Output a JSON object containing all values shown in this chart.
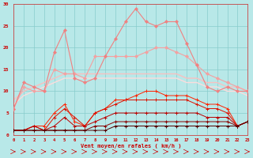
{
  "x": [
    0,
    1,
    2,
    3,
    4,
    5,
    6,
    7,
    8,
    9,
    10,
    11,
    12,
    13,
    14,
    15,
    16,
    17,
    18,
    19,
    20,
    21,
    22,
    23
  ],
  "line_jagged1": [
    6,
    12,
    11,
    10,
    19,
    24,
    13,
    12,
    13,
    18,
    22,
    26,
    29,
    26,
    25,
    26,
    26,
    21,
    16,
    11,
    10,
    11,
    10,
    10
  ],
  "line_jagged2": [
    6,
    11,
    10,
    10,
    15,
    14,
    14,
    13,
    18,
    18,
    18,
    18,
    18,
    19,
    20,
    20,
    19,
    18,
    16,
    14,
    13,
    12,
    11,
    10
  ],
  "line_smooth1": [
    8,
    10,
    11,
    12,
    13,
    14,
    14,
    14,
    14,
    14,
    14,
    14,
    14,
    14,
    14,
    14,
    14,
    13,
    13,
    12,
    12,
    11,
    11,
    10
  ],
  "line_smooth2": [
    7,
    9,
    10,
    11,
    12,
    13,
    13,
    13,
    13,
    13,
    13,
    13,
    13,
    13,
    13,
    13,
    13,
    12,
    12,
    11,
    11,
    10,
    10,
    9
  ],
  "line_red1": [
    1,
    1,
    2,
    2,
    5,
    7,
    3,
    2,
    5,
    6,
    8,
    8,
    9,
    10,
    10,
    9,
    9,
    9,
    8,
    7,
    7,
    6,
    2,
    3
  ],
  "line_red2": [
    1,
    1,
    2,
    1,
    4,
    6,
    4,
    2,
    5,
    6,
    7,
    8,
    8,
    8,
    8,
    8,
    8,
    8,
    7,
    6,
    6,
    5,
    2,
    3
  ],
  "line_red3": [
    1,
    1,
    2,
    1,
    2,
    4,
    2,
    2,
    3,
    4,
    5,
    5,
    5,
    5,
    5,
    5,
    5,
    5,
    5,
    4,
    4,
    4,
    2,
    3
  ],
  "line_red4": [
    1,
    1,
    1,
    1,
    1,
    1,
    1,
    1,
    2,
    2,
    3,
    3,
    3,
    3,
    3,
    3,
    3,
    3,
    3,
    3,
    3,
    3,
    2,
    3
  ],
  "line_red5": [
    1,
    1,
    1,
    1,
    1,
    1,
    1,
    1,
    1,
    1,
    2,
    2,
    2,
    2,
    2,
    2,
    2,
    2,
    2,
    2,
    2,
    2,
    2,
    3
  ],
  "color_jagged1": "#f08080",
  "color_jagged2": "#f4a0a0",
  "color_smooth1": "#f8c0c0",
  "color_smooth2": "#fcdcdc",
  "color_red1": "#ff2200",
  "color_red2": "#dd1100",
  "color_red3": "#bb0000",
  "color_red4": "#880000",
  "color_red5": "#550000",
  "bg_color": "#b8e8e8",
  "grid_color": "#88cccc",
  "tick_color": "#cc0000",
  "xlabel": "Vent moyen/en rafales ( km/h )",
  "ylim": [
    0,
    30
  ],
  "xlim": [
    0,
    23
  ],
  "yticks": [
    0,
    5,
    10,
    15,
    20,
    25,
    30
  ]
}
